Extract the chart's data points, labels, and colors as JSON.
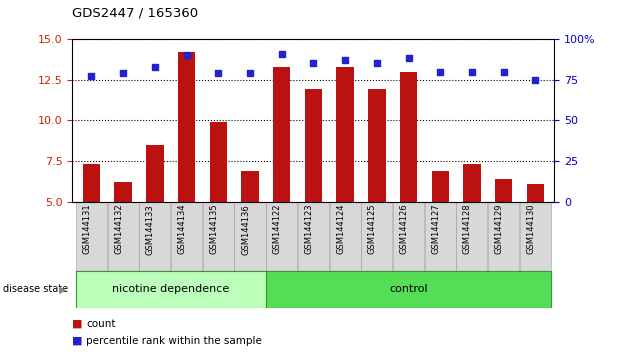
{
  "title": "GDS2447 / 165360",
  "samples": [
    "GSM144131",
    "GSM144132",
    "GSM144133",
    "GSM144134",
    "GSM144135",
    "GSM144136",
    "GSM144122",
    "GSM144123",
    "GSM144124",
    "GSM144125",
    "GSM144126",
    "GSM144127",
    "GSM144128",
    "GSM144129",
    "GSM144130"
  ],
  "counts": [
    7.3,
    6.2,
    8.5,
    14.2,
    9.9,
    6.9,
    13.3,
    11.9,
    13.3,
    11.9,
    13.0,
    6.9,
    7.3,
    6.4,
    6.1
  ],
  "percentiles": [
    77,
    79,
    83,
    90,
    79,
    79,
    91,
    85,
    87,
    85,
    88,
    80,
    80,
    80,
    75
  ],
  "ylim_left": [
    5,
    15
  ],
  "ylim_right": [
    0,
    100
  ],
  "yticks_left": [
    5,
    7.5,
    10,
    12.5,
    15
  ],
  "yticks_right": [
    0,
    25,
    50,
    75,
    100
  ],
  "bar_color": "#BB1111",
  "dot_color": "#2222CC",
  "bg_color": "#FFFFFF",
  "group1_label": "nicotine dependence",
  "group2_label": "control",
  "group1_color": "#BBFFBB",
  "group2_color": "#55DD55",
  "group1_count": 6,
  "group2_count": 9,
  "disease_state_label": "disease state",
  "legend_count_label": "count",
  "legend_pct_label": "percentile rank within the sample",
  "bar_width": 0.55,
  "left_tick_color": "#CC2200",
  "right_tick_color": "#0000CC"
}
